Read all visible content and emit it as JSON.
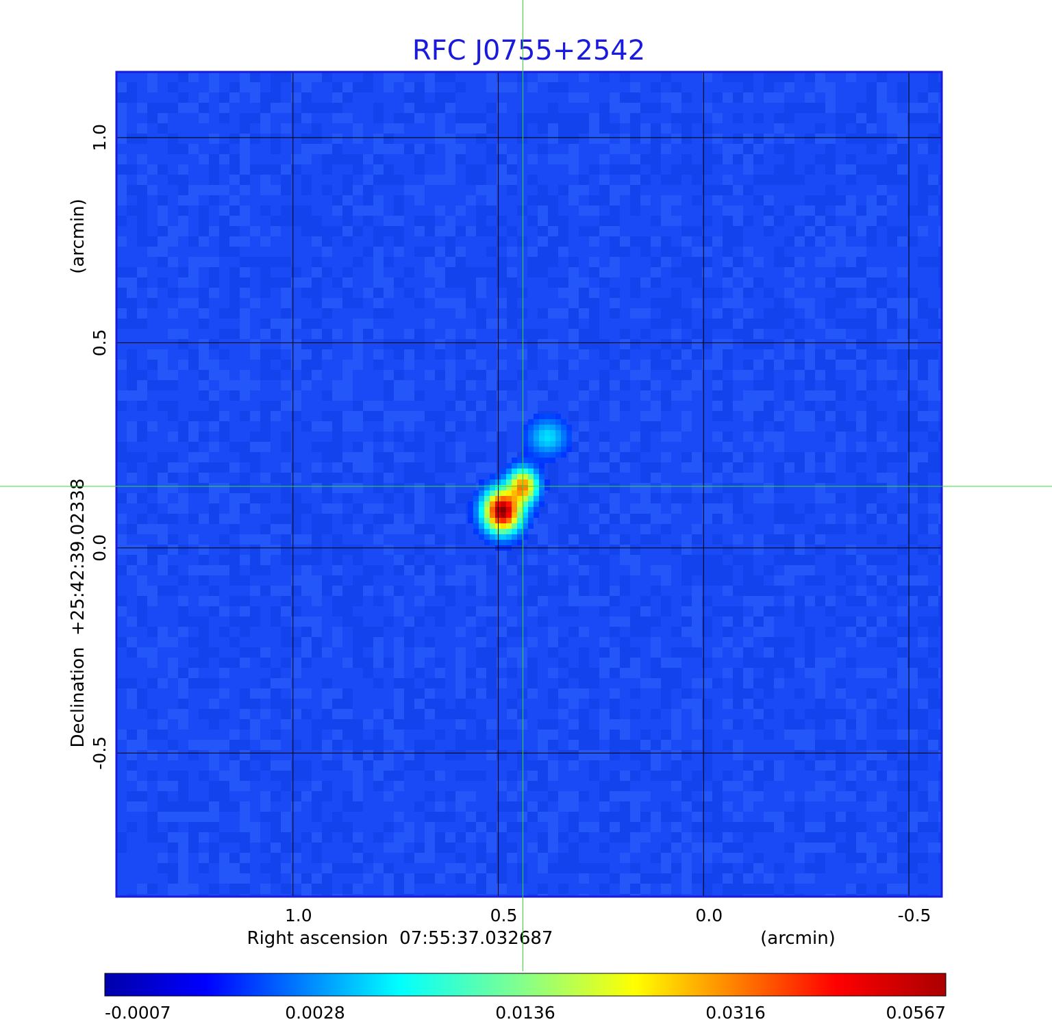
{
  "chart_data": {
    "type": "heatmap",
    "title": "RFC J0755+2542",
    "xlabel": "Right ascension  07:55:37.032687",
    "xunit": "(arcmin)",
    "ylabel": "Declination  +25:42:39.02338",
    "yunit": "(arcmin)",
    "xlim": [
      1.43,
      -0.58
    ],
    "ylim": [
      -0.85,
      1.16
    ],
    "x_ticks": [
      1.0,
      0.5,
      0.0,
      -0.5
    ],
    "x_tick_labels": [
      "1.0",
      "0.5",
      "0.0",
      "-0.5"
    ],
    "y_ticks": [
      1.0,
      0.5,
      0.0,
      -0.5
    ],
    "y_tick_labels": [
      "1.0",
      "0.5",
      "0.0",
      "-0.5"
    ],
    "grid": true,
    "crosshair": {
      "x": 0.44,
      "y": 0.15,
      "color": "#33dd33"
    },
    "colorscale": "jet",
    "colorbar": {
      "tick_labels": [
        "-0.0007",
        "0.0028",
        "0.0136",
        "0.0316",
        "0.0567"
      ],
      "min": -0.0007,
      "max": 0.0567
    },
    "background_level": -0.0003,
    "source_components": [
      {
        "x": 0.49,
        "y": 0.09,
        "peak": 0.0567,
        "sigma_x": 0.028,
        "sigma_y": 0.032
      },
      {
        "x": 0.44,
        "y": 0.15,
        "peak": 0.036,
        "sigma_x": 0.022,
        "sigma_y": 0.026
      },
      {
        "x": 0.38,
        "y": 0.27,
        "peak": 0.009,
        "sigma_x": 0.03,
        "sigma_y": 0.028
      }
    ]
  }
}
